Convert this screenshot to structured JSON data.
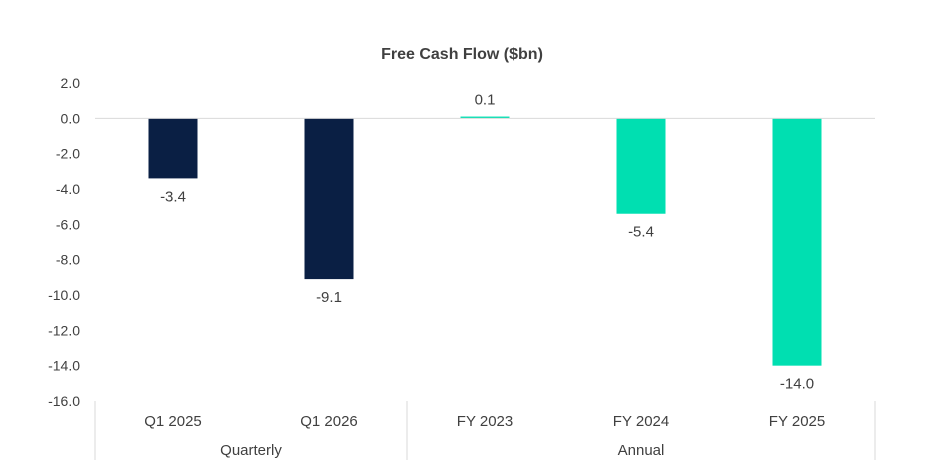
{
  "chart_data": {
    "type": "bar",
    "title": "Free Cash Flow ($bn)",
    "xlabel": "",
    "ylabel": "",
    "ylim": [
      -16,
      2
    ],
    "yticks": [
      2.0,
      0.0,
      -2.0,
      -4.0,
      -6.0,
      -8.0,
      -10.0,
      -12.0,
      -14.0,
      -16.0
    ],
    "ytick_labels": [
      "2.0",
      "0.0",
      "-2.0",
      "-4.0",
      "-6.0",
      "-8.0",
      "-10.0",
      "-12.0",
      "-14.0",
      "-16.0"
    ],
    "categories": [
      "Q1 2025",
      "Q1 2026",
      "FY 2023",
      "FY 2024",
      "FY 2025"
    ],
    "values": [
      -3.4,
      -9.1,
      0.1,
      -5.4,
      -14.0
    ],
    "value_labels": [
      "-3.4",
      "-9.1",
      "0.1",
      "-5.4",
      "-14.0"
    ],
    "groups": [
      {
        "label": "Quarterly",
        "count": 2,
        "color": "#0a1f44"
      },
      {
        "label": "Annual",
        "count": 3,
        "color": "#00dfb1"
      }
    ],
    "grid": false,
    "legend": "none"
  },
  "colors": {
    "text": "#404040",
    "axis": "#d9d9d9"
  }
}
